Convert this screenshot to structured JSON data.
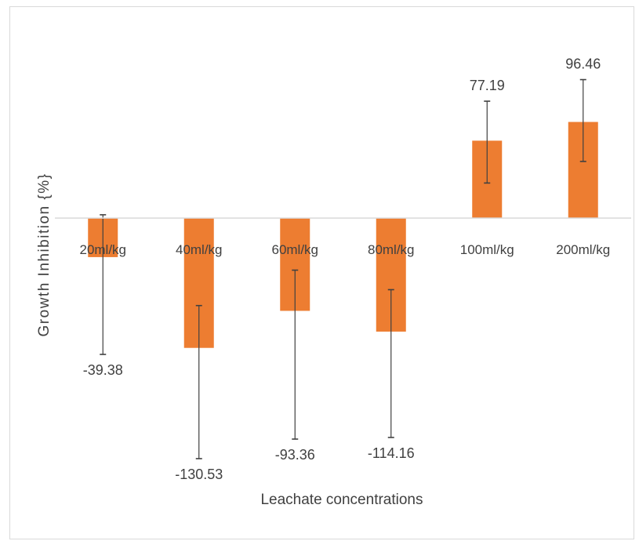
{
  "chart_data": {
    "type": "bar",
    "title": "",
    "xlabel": "Leachate concentrations",
    "ylabel": "Growth Inhibition {%}",
    "categories": [
      "20ml/kg",
      "40ml/kg",
      "60ml/kg",
      "80ml/kg",
      "100ml/kg",
      "200ml/kg"
    ],
    "series": [
      {
        "values": [
          -9.6,
          -31.9,
          -22.8,
          -27.9,
          19.0,
          23.6
        ],
        "error_low": [
          -33.5,
          -59.1,
          -54.3,
          -53.9,
          8.6,
          13.9
        ],
        "error_high": [
          0.8,
          -21.5,
          -12.8,
          -17.6,
          28.7,
          34.0
        ],
        "data_labels": [
          "-39.38",
          "-130.53",
          "-93.36",
          "-114.16",
          "77.19",
          "96.46"
        ],
        "color": "#ed7d31"
      }
    ],
    "ylim": [
      -62,
      42
    ],
    "grid": false,
    "legend": "none",
    "colors": {
      "bar": "#ed7d31",
      "axis": "#d9d9d9",
      "error_bar": "#404040",
      "text": "#404040"
    }
  }
}
